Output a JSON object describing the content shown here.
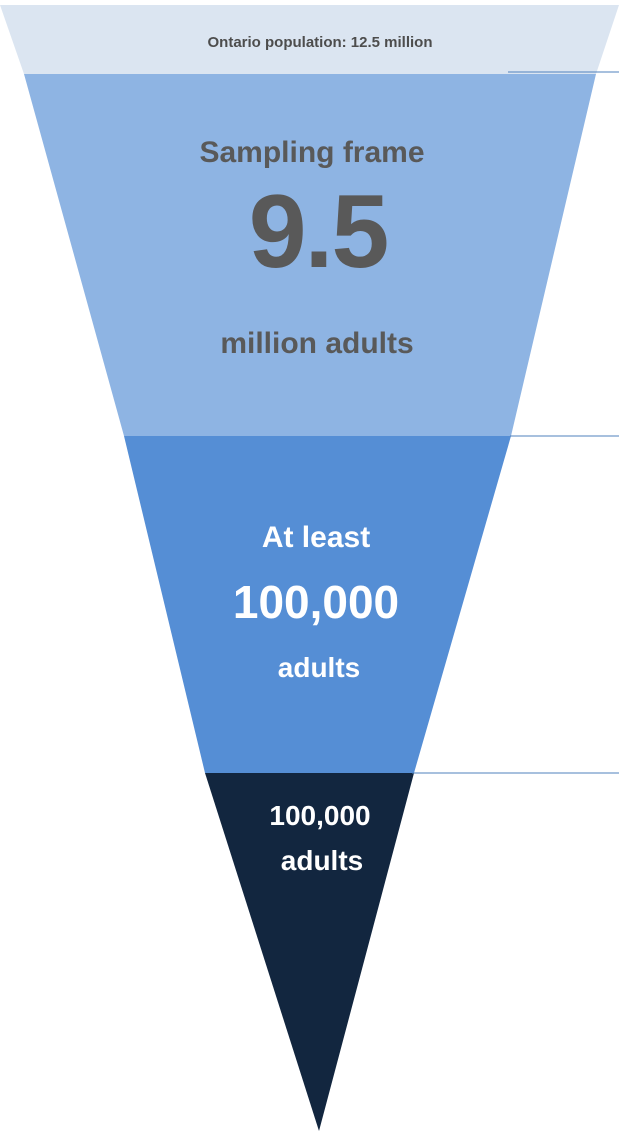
{
  "colors": {
    "band_top": "#dbe5f1",
    "stage_1": "#8eb4e3",
    "stage_2": "#558ed5",
    "stage_3": "#12263f",
    "divider": "#4f81bd",
    "dark_text": "#595959",
    "light_text": "#ffffff"
  },
  "population_label": "Ontario population: 12.5 million",
  "stages": [
    {
      "title": "Sampling frame",
      "value": "9.5",
      "unit": "million adults"
    },
    {
      "prefix": "At least",
      "value": "100,000",
      "unit": "adults"
    },
    {
      "value": "100,000",
      "unit": "adults"
    }
  ]
}
